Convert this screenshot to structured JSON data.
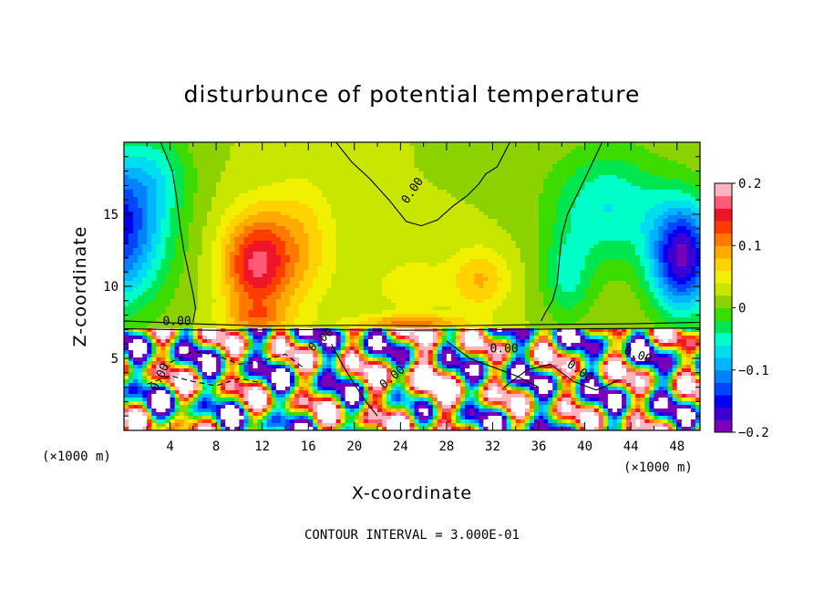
{
  "chart_data": {
    "type": "heatmap",
    "title": "disturbunce of potential temperature",
    "xlabel": "X-coordinate",
    "ylabel": "Z-coordinate",
    "x_unit_left": "(×1000 m)",
    "x_unit_right": "(×1000 m)",
    "xlim": [
      0,
      50
    ],
    "ylim": [
      0,
      20
    ],
    "xticks": [
      4,
      8,
      12,
      16,
      20,
      24,
      28,
      32,
      36,
      40,
      44,
      48
    ],
    "xtick_labels": [
      "4",
      "8",
      "12",
      "16",
      "20",
      "24",
      "28",
      "32",
      "36",
      "40",
      "44",
      "48"
    ],
    "yticks": [
      5,
      10,
      15
    ],
    "ytick_labels": [
      "5",
      "10",
      "15"
    ],
    "colorbar": {
      "range": [
        -0.2,
        0.2
      ],
      "ticks": [
        0.2,
        0.1,
        0,
        -0.1,
        -0.2
      ],
      "tick_labels": [
        "0.2",
        "0.1",
        "0",
        "−0.1",
        "−0.2"
      ],
      "colors": [
        "#7a00b8",
        "#3c00d2",
        "#0000f0",
        "#0046ff",
        "#0082ff",
        "#00b4ff",
        "#00dcf0",
        "#00ffc8",
        "#00e650",
        "#3cdc00",
        "#8cd200",
        "#c8e600",
        "#f0f000",
        "#ffd200",
        "#ffaa00",
        "#ff7800",
        "#ff3c00",
        "#f01428",
        "#ff5a78",
        "#ffb4be"
      ]
    },
    "contour_label": "0.00",
    "contour_interval_label": "CONTOUR INTERVAL = 3.000E-01"
  }
}
